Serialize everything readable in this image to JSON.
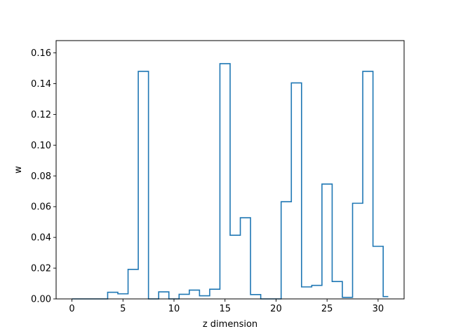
{
  "chart_data": {
    "type": "line",
    "style": "step",
    "title": "",
    "xlabel": "z dimension",
    "ylabel": "w",
    "xlim": [
      -1.55,
      32.55
    ],
    "ylim": [
      0,
      0.168
    ],
    "x_ticks": [
      0,
      5,
      10,
      15,
      20,
      25,
      30
    ],
    "y_ticks": [
      0.0,
      0.02,
      0.04,
      0.06,
      0.08,
      0.1,
      0.12,
      0.14,
      0.16
    ],
    "y_tick_labels": [
      "0.00",
      "0.02",
      "0.04",
      "0.06",
      "0.08",
      "0.10",
      "0.12",
      "0.14",
      "0.16"
    ],
    "grid": false,
    "legend": "none",
    "line_color": "#1f77b4",
    "x": [
      0,
      1,
      2,
      3,
      4,
      5,
      6,
      7,
      8,
      9,
      10,
      11,
      12,
      13,
      14,
      15,
      16,
      17,
      18,
      19,
      20,
      21,
      22,
      23,
      24,
      25,
      26,
      27,
      28,
      29,
      30,
      31
    ],
    "values": [
      0.0,
      0.0,
      0.0,
      0.0,
      0.0043,
      0.0033,
      0.0192,
      0.148,
      0.0,
      0.0046,
      0.0,
      0.003,
      0.0057,
      0.002,
      0.0063,
      0.153,
      0.0414,
      0.0528,
      0.0028,
      0.0,
      0.0,
      0.0632,
      0.1405,
      0.0078,
      0.0088,
      0.0747,
      0.0113,
      0.001,
      0.0622,
      0.148,
      0.0342,
      0.0015
    ]
  }
}
